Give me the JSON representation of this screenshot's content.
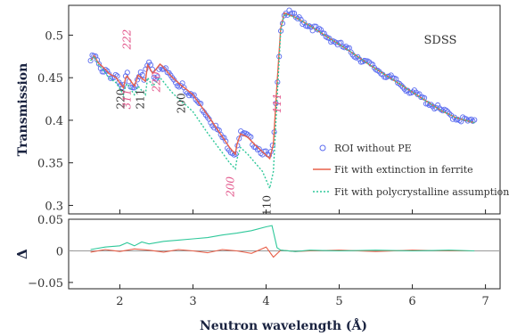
{
  "chart_data": [
    {
      "type": "scatter",
      "panel": "main",
      "annotation_label": "SDSS",
      "xlim": [
        1.3,
        7.2
      ],
      "ylim": [
        0.29,
        0.535
      ],
      "ylabel": "Transmission",
      "yticks": [
        0.3,
        0.35,
        0.4,
        0.45,
        0.5
      ],
      "grid": false,
      "legend_position": "center-right",
      "colors": {
        "markers": "#5b6cf0",
        "extinction_fit": "#e8604a",
        "polycrystal_fit": "#2fc89a",
        "hkl_black": "#333333",
        "hkl_pink": "#e2558a"
      },
      "series": [
        {
          "name": "ROI without PE",
          "style": "open-circle",
          "x": [
            1.6,
            1.65,
            1.7,
            1.75,
            1.8,
            1.85,
            1.9,
            1.95,
            2.0,
            2.05,
            2.08,
            2.1,
            2.15,
            2.2,
            2.25,
            2.3,
            2.33,
            2.36,
            2.4,
            2.45,
            2.5,
            2.55,
            2.6,
            2.65,
            2.7,
            2.75,
            2.8,
            2.85,
            2.9,
            2.95,
            3.0,
            3.1,
            3.2,
            3.3,
            3.4,
            3.5,
            3.58,
            3.6,
            3.65,
            3.7,
            3.75,
            3.8,
            3.85,
            3.9,
            3.95,
            4.0,
            4.05,
            4.1,
            4.15,
            4.2,
            4.25,
            4.3,
            4.4,
            4.5,
            4.6,
            4.7,
            4.8,
            4.9,
            5.0,
            5.2,
            5.4,
            5.6,
            5.8,
            6.0,
            6.2,
            6.4,
            6.6,
            6.8,
            6.85
          ],
          "y": [
            0.47,
            0.476,
            0.468,
            0.455,
            0.462,
            0.455,
            0.45,
            0.452,
            0.44,
            0.436,
            0.45,
            0.454,
            0.442,
            0.44,
            0.454,
            0.452,
            0.446,
            0.462,
            0.466,
            0.455,
            0.448,
            0.465,
            0.462,
            0.455,
            0.452,
            0.445,
            0.44,
            0.445,
            0.437,
            0.432,
            0.428,
            0.418,
            0.406,
            0.393,
            0.38,
            0.367,
            0.36,
            0.37,
            0.384,
            0.383,
            0.38,
            0.376,
            0.371,
            0.367,
            0.363,
            0.36,
            0.356,
            0.37,
            0.44,
            0.506,
            0.526,
            0.526,
            0.521,
            0.516,
            0.511,
            0.506,
            0.5,
            0.495,
            0.489,
            0.478,
            0.466,
            0.455,
            0.444,
            0.433,
            0.422,
            0.411,
            0.403,
            0.398,
            0.397
          ]
        },
        {
          "name": "Fit with extinction in ferrite",
          "style": "solid-line",
          "x": [
            1.6,
            1.65,
            1.7,
            1.8,
            1.85,
            1.95,
            2.05,
            2.08,
            2.1,
            2.2,
            2.25,
            2.35,
            2.38,
            2.45,
            2.55,
            2.6,
            2.7,
            2.85,
            2.9,
            3.0,
            3.2,
            3.4,
            3.5,
            3.58,
            3.6,
            3.65,
            3.75,
            3.85,
            3.95,
            4.05,
            4.1,
            4.15,
            4.2,
            4.25,
            4.4,
            4.6,
            4.8,
            5.0,
            5.2,
            5.4,
            5.6,
            5.8,
            6.0,
            6.2,
            6.4,
            6.6,
            6.85
          ],
          "y": [
            0.47,
            0.476,
            0.468,
            0.46,
            0.455,
            0.45,
            0.438,
            0.45,
            0.452,
            0.44,
            0.453,
            0.446,
            0.465,
            0.455,
            0.466,
            0.462,
            0.452,
            0.44,
            0.437,
            0.43,
            0.406,
            0.381,
            0.368,
            0.36,
            0.371,
            0.384,
            0.38,
            0.371,
            0.363,
            0.355,
            0.372,
            0.443,
            0.508,
            0.526,
            0.521,
            0.511,
            0.5,
            0.489,
            0.478,
            0.466,
            0.455,
            0.444,
            0.433,
            0.422,
            0.411,
            0.403,
            0.397
          ]
        },
        {
          "name": "Fit with polycrystalline assumption",
          "style": "dotted-line",
          "x": [
            1.6,
            1.65,
            1.7,
            1.8,
            1.85,
            1.95,
            2.05,
            2.08,
            2.1,
            2.2,
            2.25,
            2.35,
            2.38,
            2.45,
            2.55,
            2.6,
            2.7,
            2.85,
            2.9,
            3.0,
            3.2,
            3.4,
            3.5,
            3.58,
            3.6,
            3.65,
            3.75,
            3.85,
            3.95,
            4.05,
            4.1,
            4.15,
            4.2,
            4.25,
            4.4,
            4.6,
            4.8,
            5.0,
            5.2,
            5.4,
            5.6,
            5.8,
            6.0,
            6.2,
            6.4,
            6.6,
            6.85
          ],
          "y": [
            0.47,
            0.475,
            0.466,
            0.456,
            0.45,
            0.444,
            0.43,
            0.44,
            0.443,
            0.43,
            0.44,
            0.43,
            0.45,
            0.44,
            0.45,
            0.445,
            0.434,
            0.421,
            0.418,
            0.41,
            0.385,
            0.362,
            0.35,
            0.343,
            0.354,
            0.368,
            0.36,
            0.35,
            0.34,
            0.32,
            0.34,
            0.425,
            0.505,
            0.525,
            0.521,
            0.511,
            0.5,
            0.489,
            0.478,
            0.466,
            0.455,
            0.444,
            0.433,
            0.422,
            0.411,
            0.403,
            0.397
          ]
        }
      ],
      "annotations": [
        {
          "text": "220",
          "x": 2.06,
          "y": 0.425,
          "color": "black",
          "rotated": true
        },
        {
          "text": "222",
          "x": 2.15,
          "y": 0.495,
          "color": "pink",
          "rotated": true
        },
        {
          "text": "311",
          "x": 2.15,
          "y": 0.425,
          "color": "pink",
          "rotated": true
        },
        {
          "text": "211",
          "x": 2.33,
          "y": 0.425,
          "color": "black",
          "rotated": true
        },
        {
          "text": "220",
          "x": 2.55,
          "y": 0.445,
          "color": "pink",
          "rotated": true
        },
        {
          "text": "200",
          "x": 2.89,
          "y": 0.42,
          "color": "black",
          "rotated": true
        },
        {
          "text": "200",
          "x": 3.56,
          "y": 0.322,
          "color": "pink",
          "rotated": true
        },
        {
          "text": "111",
          "x": 4.2,
          "y": 0.42,
          "color": "pink",
          "rotated": true
        },
        {
          "text": "110",
          "x": 4.06,
          "y": 0.3,
          "color": "black",
          "rotated": true
        }
      ]
    },
    {
      "type": "line",
      "panel": "residual",
      "xlabel": "Neutron wavelength (Å)",
      "ylabel": "Δ",
      "xlim": [
        1.3,
        7.2
      ],
      "ylim": [
        -0.06,
        0.05
      ],
      "xticks": [
        2,
        3,
        4,
        5,
        6,
        7
      ],
      "yticks": [
        0.05,
        0,
        -0.05
      ],
      "ytick_labels": [
        "0.05",
        "0",
        "−0.05"
      ],
      "reference_line": 0,
      "series": [
        {
          "name": "Fit with extinction in ferrite",
          "color": "#e8604a",
          "x": [
            1.6,
            1.8,
            2.0,
            2.2,
            2.4,
            2.6,
            2.8,
            3.0,
            3.2,
            3.4,
            3.6,
            3.8,
            4.0,
            4.1,
            4.2,
            4.4,
            4.6,
            5.0,
            5.5,
            6.0,
            6.5,
            6.85
          ],
          "y": [
            -0.002,
            0.002,
            -0.001,
            0.003,
            0.001,
            -0.002,
            0.002,
            0.0,
            -0.003,
            0.002,
            0.0,
            -0.004,
            0.006,
            -0.01,
            0.001,
            -0.001,
            0.0,
            0.001,
            -0.001,
            0.001,
            0.0,
            0.0
          ]
        },
        {
          "name": "Fit with polycrystalline assumption",
          "color": "#2fc89a",
          "x": [
            1.6,
            1.8,
            2.0,
            2.1,
            2.2,
            2.3,
            2.4,
            2.6,
            2.8,
            3.0,
            3.2,
            3.4,
            3.6,
            3.8,
            4.0,
            4.08,
            4.15,
            4.2,
            4.4,
            4.6,
            5.0,
            5.5,
            6.0,
            6.5,
            6.85
          ],
          "y": [
            0.002,
            0.006,
            0.008,
            0.013,
            0.008,
            0.014,
            0.011,
            0.015,
            0.017,
            0.019,
            0.021,
            0.025,
            0.028,
            0.032,
            0.038,
            0.04,
            0.005,
            0.001,
            -0.001,
            0.001,
            0.0,
            0.001,
            0.0,
            0.001,
            0.0
          ]
        }
      ]
    }
  ]
}
